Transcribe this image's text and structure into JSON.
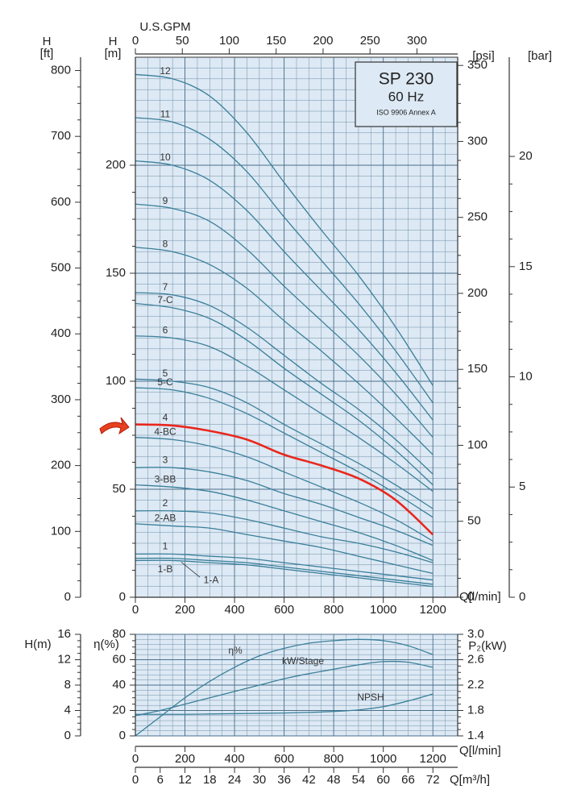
{
  "chart_data": [
    {
      "type": "line",
      "title": "SP 230",
      "subtitle": "60 Hz",
      "note": "ISO 9906 Annex A",
      "x_label": "Q[l/min]",
      "y_label": "H",
      "y_unit": "[m]",
      "x": [
        0,
        150,
        300,
        450,
        600,
        750,
        900,
        1050,
        1200
      ],
      "xlim": [
        0,
        1300
      ],
      "xticks": [
        0,
        200,
        400,
        600,
        800,
        1000,
        1200
      ],
      "ylim": [
        0,
        250
      ],
      "yticks": [
        0,
        50,
        100,
        150,
        200
      ],
      "grid": true,
      "x2_label": "U.S.GPM",
      "x2lim": [
        0,
        343.4
      ],
      "x2ticks": [
        0,
        50,
        100,
        150,
        200,
        250,
        300
      ],
      "y_ft": {
        "label": "H",
        "unit": "[ft]",
        "lim": [
          0,
          820.2
        ],
        "ticks": [
          0,
          100,
          200,
          300,
          400,
          500,
          600,
          700,
          800
        ]
      },
      "y_psi": {
        "unit": "[psi]",
        "lim": [
          0,
          355.4
        ],
        "ticks": [
          0,
          50,
          100,
          150,
          200,
          250,
          300,
          350
        ]
      },
      "y_bar": {
        "unit": "[bar]",
        "lim": [
          0,
          24.5
        ],
        "ticks": [
          0,
          5,
          10,
          15,
          20
        ]
      },
      "series": [
        {
          "name": "12",
          "color": "#3a7f9a",
          "values": [
            242,
            240,
            232,
            215,
            192,
            170,
            149,
            125,
            98
          ]
        },
        {
          "name": "11",
          "color": "#3a7f9a",
          "values": [
            222,
            220,
            212,
            197,
            176,
            156,
            136,
            114,
            90
          ]
        },
        {
          "name": "10",
          "color": "#3a7f9a",
          "values": [
            202,
            200,
            193,
            179,
            160,
            142,
            124,
            104,
            82
          ]
        },
        {
          "name": "9",
          "color": "#3a7f9a",
          "values": [
            182,
            180,
            174,
            161,
            144,
            128,
            112,
            94,
            74
          ]
        },
        {
          "name": "8",
          "color": "#3a7f9a",
          "values": [
            162,
            160,
            154,
            143,
            128,
            114,
            99,
            83,
            66
          ]
        },
        {
          "name": "7",
          "color": "#3a7f9a",
          "values": [
            141,
            140,
            135,
            125,
            112,
            99,
            87,
            73,
            57
          ]
        },
        {
          "name": "7-C",
          "color": "#3a7f9a",
          "values": [
            136,
            134,
            129,
            119,
            106,
            94,
            82,
            68,
            52
          ]
        },
        {
          "name": "6",
          "color": "#3a7f9a",
          "values": [
            121,
            120,
            116,
            107,
            96,
            85,
            74,
            62,
            49
          ]
        },
        {
          "name": "5",
          "color": "#3a7f9a",
          "values": [
            101,
            100,
            97,
            90,
            80,
            71,
            62,
            52,
            41
          ]
        },
        {
          "name": "5-C",
          "color": "#3a7f9a",
          "values": [
            97,
            96,
            92,
            85,
            76,
            67,
            58,
            48,
            37
          ]
        },
        {
          "name": "4",
          "color": "#e8281e",
          "values": [
            80,
            79.5,
            77,
            73,
            66,
            61,
            55,
            45,
            29
          ]
        },
        {
          "name": "4-BC",
          "color": "#3a7f9a",
          "values": [
            74,
            73,
            70,
            65,
            58,
            51,
            44,
            36,
            26
          ]
        },
        {
          "name": "3",
          "color": "#3a7f9a",
          "values": [
            60,
            60,
            58,
            54,
            48,
            43,
            37,
            31,
            24
          ]
        },
        {
          "name": "3-BB",
          "color": "#3a7f9a",
          "values": [
            52,
            51,
            49,
            45,
            40,
            35,
            30,
            24,
            17
          ]
        },
        {
          "name": "2",
          "color": "#3a7f9a",
          "values": [
            40,
            40,
            39,
            36,
            32,
            28,
            25,
            21,
            16
          ]
        },
        {
          "name": "2-AB",
          "color": "#3a7f9a",
          "values": [
            34,
            33,
            32,
            29,
            26,
            23,
            19,
            15,
            11
          ]
        },
        {
          "name": "1",
          "color": "#3a7f9a",
          "values": [
            20,
            20,
            19,
            18,
            16,
            14,
            12,
            10,
            8
          ]
        },
        {
          "name": "1-B",
          "color": "#3a7f9a",
          "values": [
            18,
            18,
            17,
            16,
            14,
            12,
            10,
            8,
            6
          ]
        },
        {
          "name": "1-A",
          "color": "#3a7f9a",
          "values": [
            17,
            17,
            16,
            15,
            13,
            11,
            9,
            7,
            5
          ]
        }
      ]
    },
    {
      "type": "line",
      "x_label": "Q[l/min]",
      "x": [
        0,
        100,
        200,
        300,
        400,
        500,
        600,
        700,
        800,
        900,
        1000,
        1100,
        1200
      ],
      "xlim": [
        0,
        1300
      ],
      "xticks": [
        0,
        200,
        400,
        600,
        800,
        1000,
        1200
      ],
      "grid": true,
      "x2_label": "Q[m³/h]",
      "x2lim": [
        0,
        78
      ],
      "x2ticks": [
        0,
        6,
        12,
        18,
        24,
        30,
        36,
        42,
        48,
        54,
        60,
        66,
        72
      ],
      "y_label": "η(%)",
      "ylim": [
        0,
        80
      ],
      "yticks": [
        0,
        20,
        40,
        60,
        80
      ],
      "y2_label": "P₂(kW)",
      "y2lim": [
        1.4,
        3.0
      ],
      "y2ticks": [
        1.4,
        1.8,
        2.2,
        2.6,
        {
          "value": 3.0,
          "label": "3.0"
        }
      ],
      "y3_label": "H(m)",
      "y3lim": [
        0,
        16
      ],
      "y3ticks": [
        0,
        4,
        8,
        12,
        16
      ],
      "series": [
        {
          "name": "η%",
          "axis": "y",
          "color": "#3a7f9a",
          "values": [
            0,
            15,
            30,
            43,
            54,
            63,
            69,
            73,
            75,
            76,
            75,
            71,
            64
          ]
        },
        {
          "name": "kW/Stage",
          "axis": "y2",
          "color": "#3a7f9a",
          "values": [
            1.72,
            1.8,
            1.9,
            2.0,
            2.1,
            2.2,
            2.3,
            2.38,
            2.45,
            2.52,
            2.57,
            2.56,
            2.48
          ]
        },
        {
          "name": "NPSH",
          "axis": "y3",
          "color": "#3a7f9a",
          "values": [
            3.4,
            3.4,
            3.4,
            3.45,
            3.5,
            3.55,
            3.6,
            3.7,
            3.85,
            4.1,
            4.6,
            5.5,
            6.6
          ]
        }
      ]
    }
  ]
}
